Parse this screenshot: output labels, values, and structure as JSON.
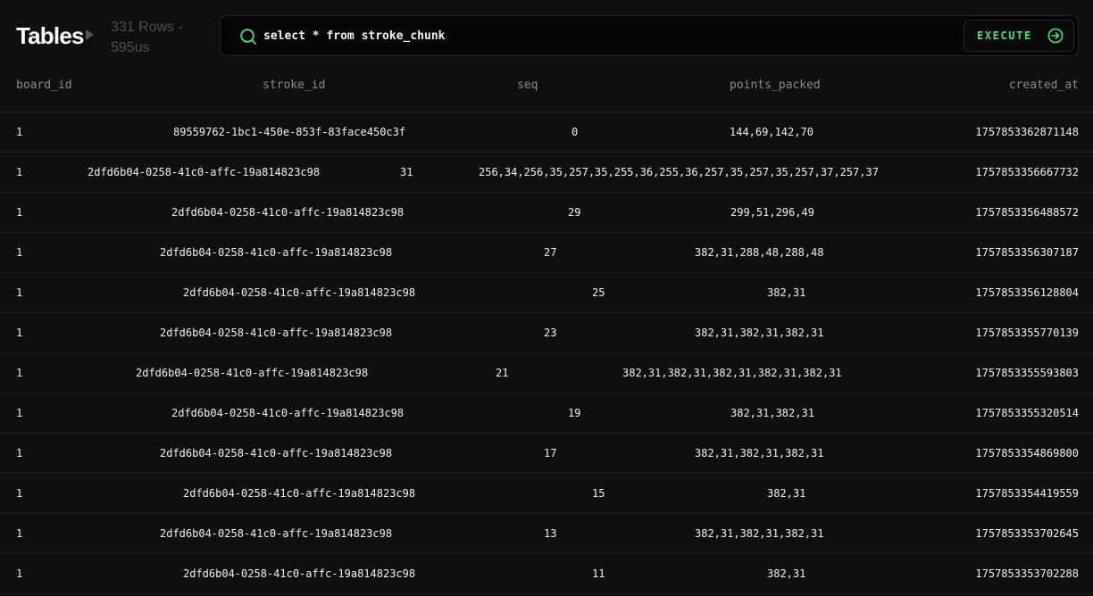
{
  "header": {
    "title": "Tables",
    "row_count": "331 Rows -",
    "timing": "595us"
  },
  "query": {
    "text": "select * from stroke_chunk",
    "execute_label": "EXECUTE"
  },
  "colors": {
    "background": "#0f0f0f",
    "accent": "#4ade80",
    "muted": "#8a8a8a"
  },
  "icons": {
    "search": "search-icon",
    "execute": "arrow-right-circle-icon",
    "caret": "triangle-right-icon"
  },
  "table": {
    "columns": [
      "board_id",
      "stroke_id",
      "seq",
      "points_packed",
      "created_at"
    ],
    "rows": [
      [
        "1",
        "89559762-1bc1-450e-853f-83face450c3f",
        "0",
        "144,69,142,70",
        "1757853362871148"
      ],
      [
        "1",
        "2dfd6b04-0258-41c0-affc-19a814823c98",
        "31",
        "256,34,256,35,257,35,255,36,255,36,257,35,257,35,257,37,257,37",
        "1757853356667732"
      ],
      [
        "1",
        "2dfd6b04-0258-41c0-affc-19a814823c98",
        "29",
        "299,51,296,49",
        "1757853356488572"
      ],
      [
        "1",
        "2dfd6b04-0258-41c0-affc-19a814823c98",
        "27",
        "382,31,288,48,288,48",
        "1757853356307187"
      ],
      [
        "1",
        "2dfd6b04-0258-41c0-affc-19a814823c98",
        "25",
        "382,31",
        "1757853356128804"
      ],
      [
        "1",
        "2dfd6b04-0258-41c0-affc-19a814823c98",
        "23",
        "382,31,382,31,382,31",
        "1757853355770139"
      ],
      [
        "1",
        "2dfd6b04-0258-41c0-affc-19a814823c98",
        "21",
        "382,31,382,31,382,31,382,31,382,31",
        "1757853355593803"
      ],
      [
        "1",
        "2dfd6b04-0258-41c0-affc-19a814823c98",
        "19",
        "382,31,382,31",
        "1757853355320514"
      ],
      [
        "1",
        "2dfd6b04-0258-41c0-affc-19a814823c98",
        "17",
        "382,31,382,31,382,31",
        "1757853354869800"
      ],
      [
        "1",
        "2dfd6b04-0258-41c0-affc-19a814823c98",
        "15",
        "382,31",
        "1757853354419559"
      ],
      [
        "1",
        "2dfd6b04-0258-41c0-affc-19a814823c98",
        "13",
        "382,31,382,31,382,31",
        "1757853353702645"
      ],
      [
        "1",
        "2dfd6b04-0258-41c0-affc-19a814823c98",
        "11",
        "382,31",
        "1757853353702288"
      ]
    ]
  }
}
